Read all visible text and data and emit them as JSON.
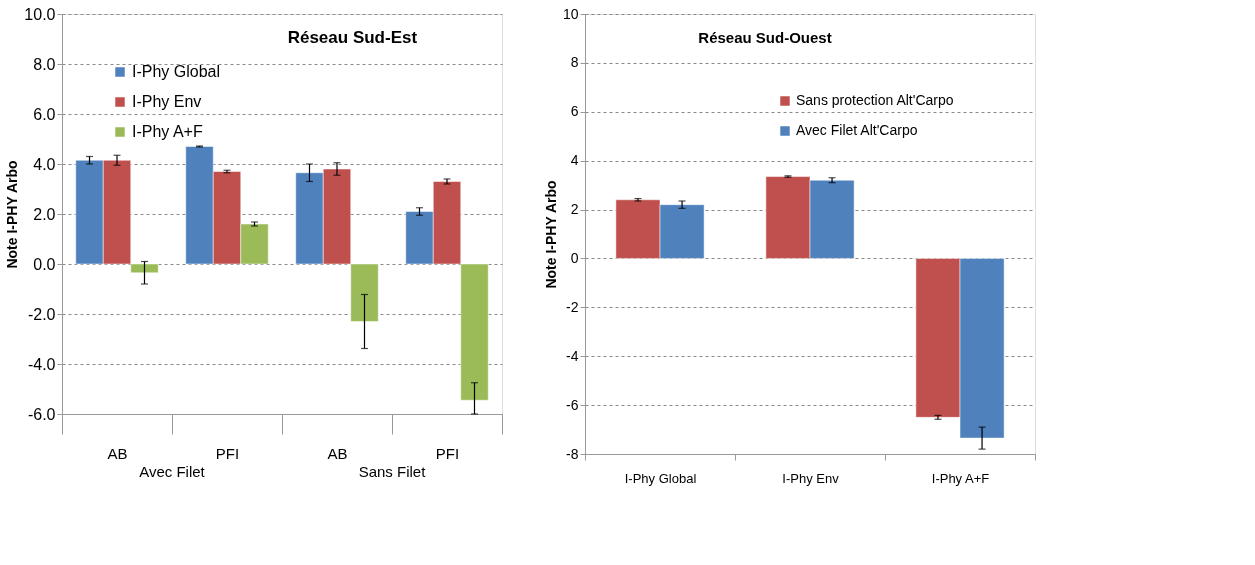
{
  "chart_data": [
    {
      "type": "bar",
      "title": "Réseau Sud-Est",
      "ylabel": "Note I-PHY Arbo",
      "categories": [
        "AB",
        "PFI",
        "AB",
        "PFI"
      ],
      "annotations": [
        "Avec Filet",
        "Sans Filet"
      ],
      "series": [
        {
          "name": "I-Phy Global",
          "color": "#4f81bd",
          "values": [
            4.15,
            4.7,
            3.65,
            2.1
          ],
          "errors": [
            0.15,
            0.02,
            0.35,
            0.15
          ]
        },
        {
          "name": "I-Phy Env",
          "color": "#c0504d",
          "values": [
            4.15,
            3.7,
            3.8,
            3.3
          ],
          "errors": [
            0.2,
            0.05,
            0.25,
            0.1
          ]
        },
        {
          "name": "I-Phy A+F",
          "color": "#9bbb59",
          "values": [
            -0.35,
            1.6,
            -2.3,
            -5.45
          ],
          "errors": [
            0.45,
            0.08,
            1.08,
            [
              -6.0,
              -4.75
            ]
          ]
        }
      ],
      "ylim": [
        -6,
        10
      ],
      "yticks": [
        {
          "value": -6,
          "label": "-6.0"
        },
        {
          "value": -4,
          "label": "-4.0"
        },
        {
          "value": -2,
          "label": "-2.0"
        },
        {
          "value": 0,
          "label": "0.0"
        },
        {
          "value": 2,
          "label": "2.0"
        },
        {
          "value": 4,
          "label": "4.0"
        },
        {
          "value": 6,
          "label": "6.0"
        },
        {
          "value": 8,
          "label": "8.0"
        },
        {
          "value": 10,
          "label": "10.0"
        }
      ],
      "grid": "y",
      "legend": "top left"
    },
    {
      "type": "bar",
      "title": "Réseau Sud-Ouest",
      "ylabel": "Note I-PHY Arbo",
      "categories": [
        "I-Phy Global",
        "I-Phy Env",
        "I-Phy A+F"
      ],
      "series": [
        {
          "name": "Sans protection Alt'Carpo",
          "color": "#c0504d",
          "values": [
            2.4,
            3.35,
            -6.5
          ],
          "errors": [
            0.05,
            0.03,
            0.08
          ]
        },
        {
          "name": "Avec Filet Alt'Carpo",
          "color": "#4f81bd",
          "values": [
            2.2,
            3.2,
            -7.35
          ],
          "errors": [
            0.15,
            0.1,
            0.45
          ]
        }
      ],
      "ylim": [
        -8,
        10
      ],
      "yticks": [
        -8,
        -6,
        -4,
        -2,
        0,
        2,
        4,
        6,
        8,
        10
      ],
      "grid": "y",
      "legend": "top right"
    }
  ]
}
